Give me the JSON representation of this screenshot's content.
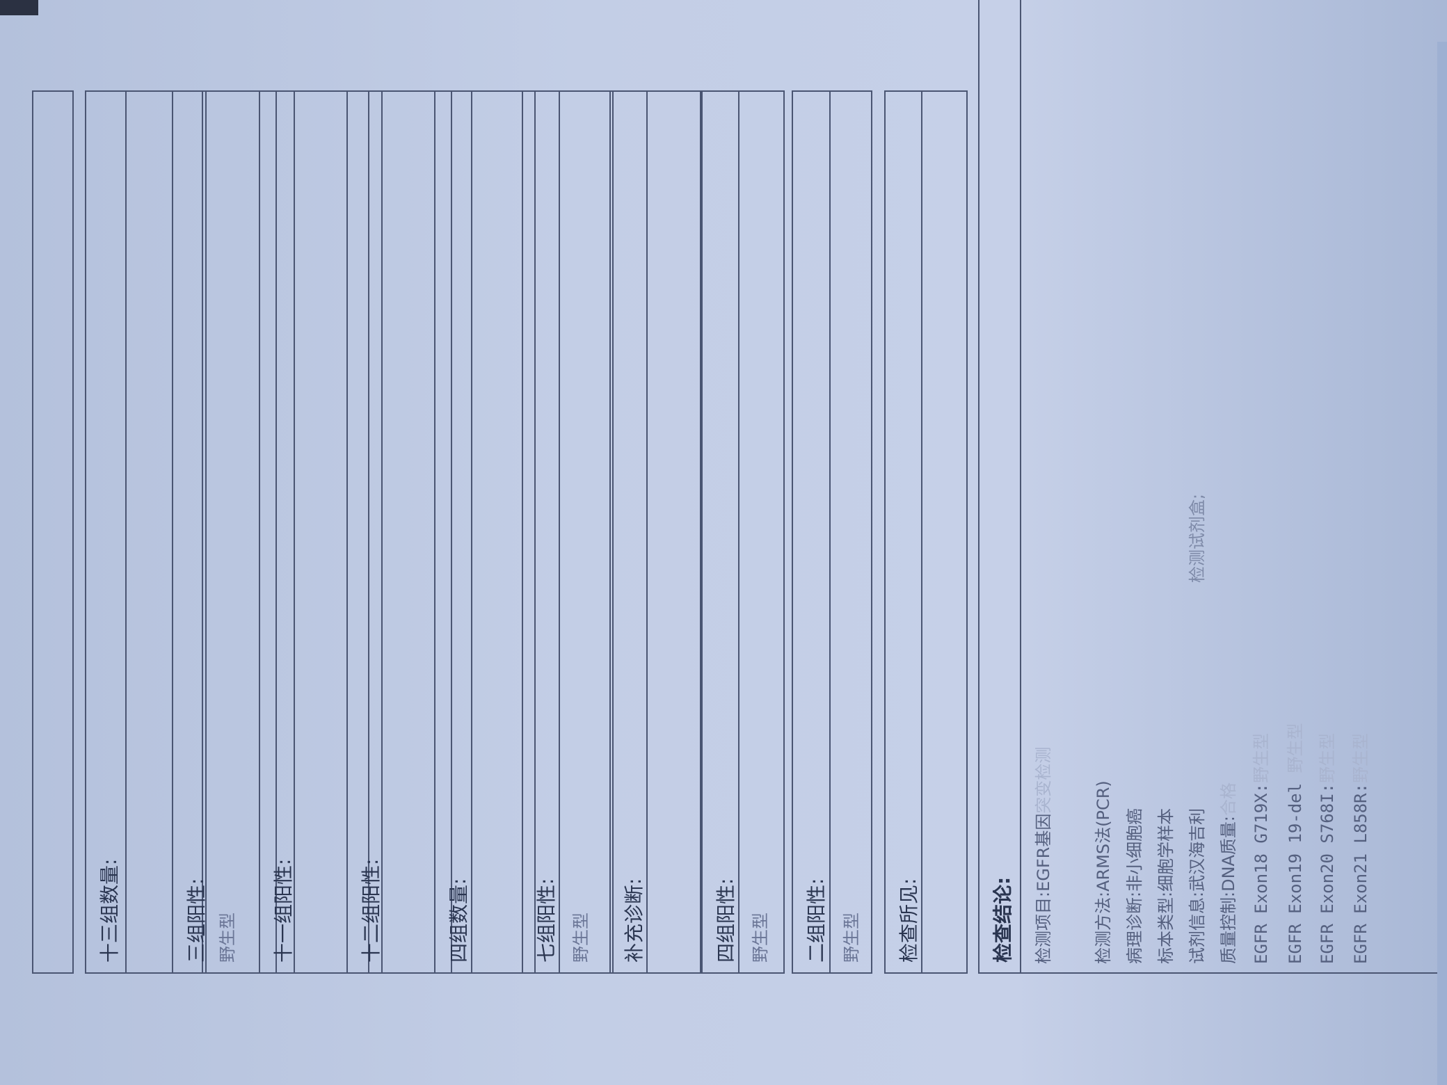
{
  "sections": [
    {
      "label": "",
      "value": ""
    },
    {
      "label": "十三组数量:",
      "value": ""
    },
    {
      "label": "三组阳性:",
      "value": "野生型"
    },
    {
      "label": "十一组阳性:",
      "value": ""
    },
    {
      "label": "十二组阳性:",
      "value": ""
    },
    {
      "label": "四组数量:",
      "value": ""
    },
    {
      "label": "七组阳性:",
      "value": "野生型"
    },
    {
      "label": "补充诊断:",
      "value": ""
    },
    {
      "label": "四组阳性:",
      "value": "野生型"
    },
    {
      "label": "二组阳性:",
      "value": "野生型"
    },
    {
      "label": "检查所见:",
      "value": ""
    }
  ],
  "conclusion": {
    "title": "检查结论:",
    "item": "检测项目:EGFR基因",
    "item_faded": "突变检测",
    "method": "检测方法:ARMS法(PCR)",
    "pathology": "病理诊断:非小细胞癌",
    "specimen": "标本类型:细胞学样本",
    "reagent": "试剂信息:武汉海吉利",
    "quality": "质量控制:DNA质量:",
    "quality_value": "合格",
    "kit_label": "检测试剂盒;",
    "results": [
      {
        "name": "EGFR Exon18 G719X:",
        "value": "野生型"
      },
      {
        "name": "EGFR Exon19 19-del",
        "value": "野生型"
      },
      {
        "name": "EGFR Exon20 S768I:",
        "value": "野生型"
      },
      {
        "name": "EGFR Exon21 L858R:",
        "value": "野生型"
      }
    ]
  }
}
